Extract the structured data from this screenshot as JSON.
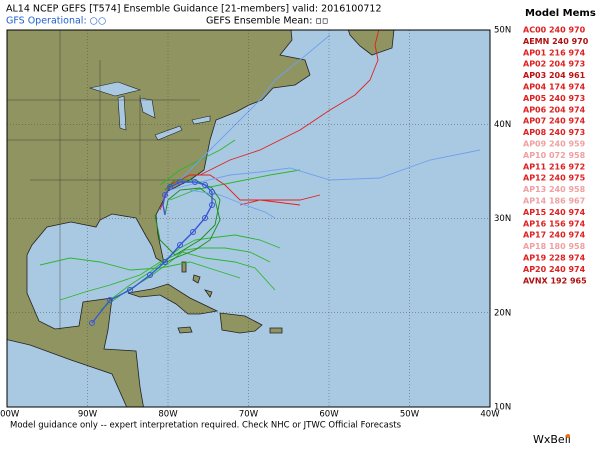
{
  "header": {
    "title": "AL14 NCEP GEFS [T574] Ensemble Guidance [21-members] valid: 2016100712",
    "gfs_operational": "GFS Operational: ○○",
    "ensemble_mean": "GEFS Ensemble Mean: ▫▫"
  },
  "map": {
    "longitude_labels": [
      "100W",
      "90W",
      "80W",
      "70W",
      "60W",
      "50W",
      "40W"
    ],
    "latitude_labels": [
      "50N",
      "40N",
      "30N",
      "20N",
      "10N"
    ]
  },
  "legend": {
    "title": "Model Mems",
    "items": [
      {
        "label": "AC00 240 970",
        "color": "#e02020"
      },
      {
        "label": "AEMN 240 970",
        "color": "#b01010"
      },
      {
        "label": "AP01 216 974",
        "color": "#e02020"
      },
      {
        "label": "AP02 204 973",
        "color": "#e02020"
      },
      {
        "label": "AP03 204 961",
        "color": "#c01010"
      },
      {
        "label": "AP04 174 974",
        "color": "#e02020"
      },
      {
        "label": "AP05 240 973",
        "color": "#e02020"
      },
      {
        "label": "AP06 204 974",
        "color": "#e02020"
      },
      {
        "label": "AP07 240 974",
        "color": "#e02020"
      },
      {
        "label": "AP08 240 973",
        "color": "#e02020"
      },
      {
        "label": "AP09 240 959",
        "color": "#f0a0a0"
      },
      {
        "label": "AP10 072 958",
        "color": "#f0a0a0"
      },
      {
        "label": "AP11 216 972",
        "color": "#e02020"
      },
      {
        "label": "AP12 240 975",
        "color": "#e02020"
      },
      {
        "label": "AP13 240 958",
        "color": "#f0a0a0"
      },
      {
        "label": "AP14 186 967",
        "color": "#f0a0a0"
      },
      {
        "label": "AP15 240 974",
        "color": "#e02020"
      },
      {
        "label": "AP16 156 974",
        "color": "#e02020"
      },
      {
        "label": "AP17 240 974",
        "color": "#e02020"
      },
      {
        "label": "AP18 180 958",
        "color": "#f0a0a0"
      },
      {
        "label": "AP19 228 974",
        "color": "#e02020"
      },
      {
        "label": "AP20 240 974",
        "color": "#e02020"
      },
      {
        "label": "AVNX 192 965",
        "color": "#b01010"
      }
    ]
  },
  "footer": {
    "disclaimer": "Model guidance only -- expert interpretation required.  Check NHC or JTWC Official Forecasts",
    "brand": "WxBell"
  }
}
